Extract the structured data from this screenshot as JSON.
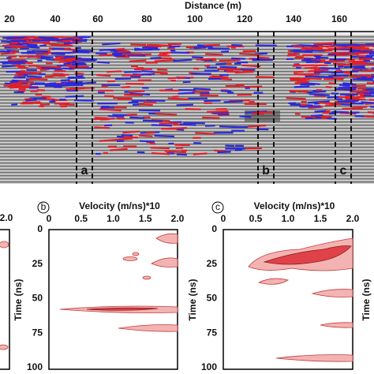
{
  "radargram": {
    "axis_label": "Distance (m)",
    "ticks": [
      "20",
      "40",
      "60",
      "80",
      "100",
      "120",
      "140",
      "160"
    ],
    "section_labels": [
      "a",
      "b",
      "c"
    ]
  },
  "left_panel": {
    "x_tick": "2.0"
  },
  "panels": [
    {
      "label": "b",
      "x_label": "Velocity (m/ns)*10",
      "x_ticks": [
        "0",
        "0.5",
        "1.0",
        "1.5",
        "2.0"
      ],
      "y_label": "Time (ns)",
      "y_ticks": [
        "0",
        "25",
        "50",
        "75",
        "100"
      ]
    },
    {
      "label": "c",
      "x_label": "Velocity (m/ns)*10",
      "x_ticks": [
        "0",
        "0.5",
        "1.0",
        "1.5",
        "2.0"
      ],
      "y_label": "Time (ns)",
      "y_ticks": [
        "0",
        "25",
        "50",
        "75",
        "100"
      ]
    }
  ],
  "right_label": "Time (ns)"
}
